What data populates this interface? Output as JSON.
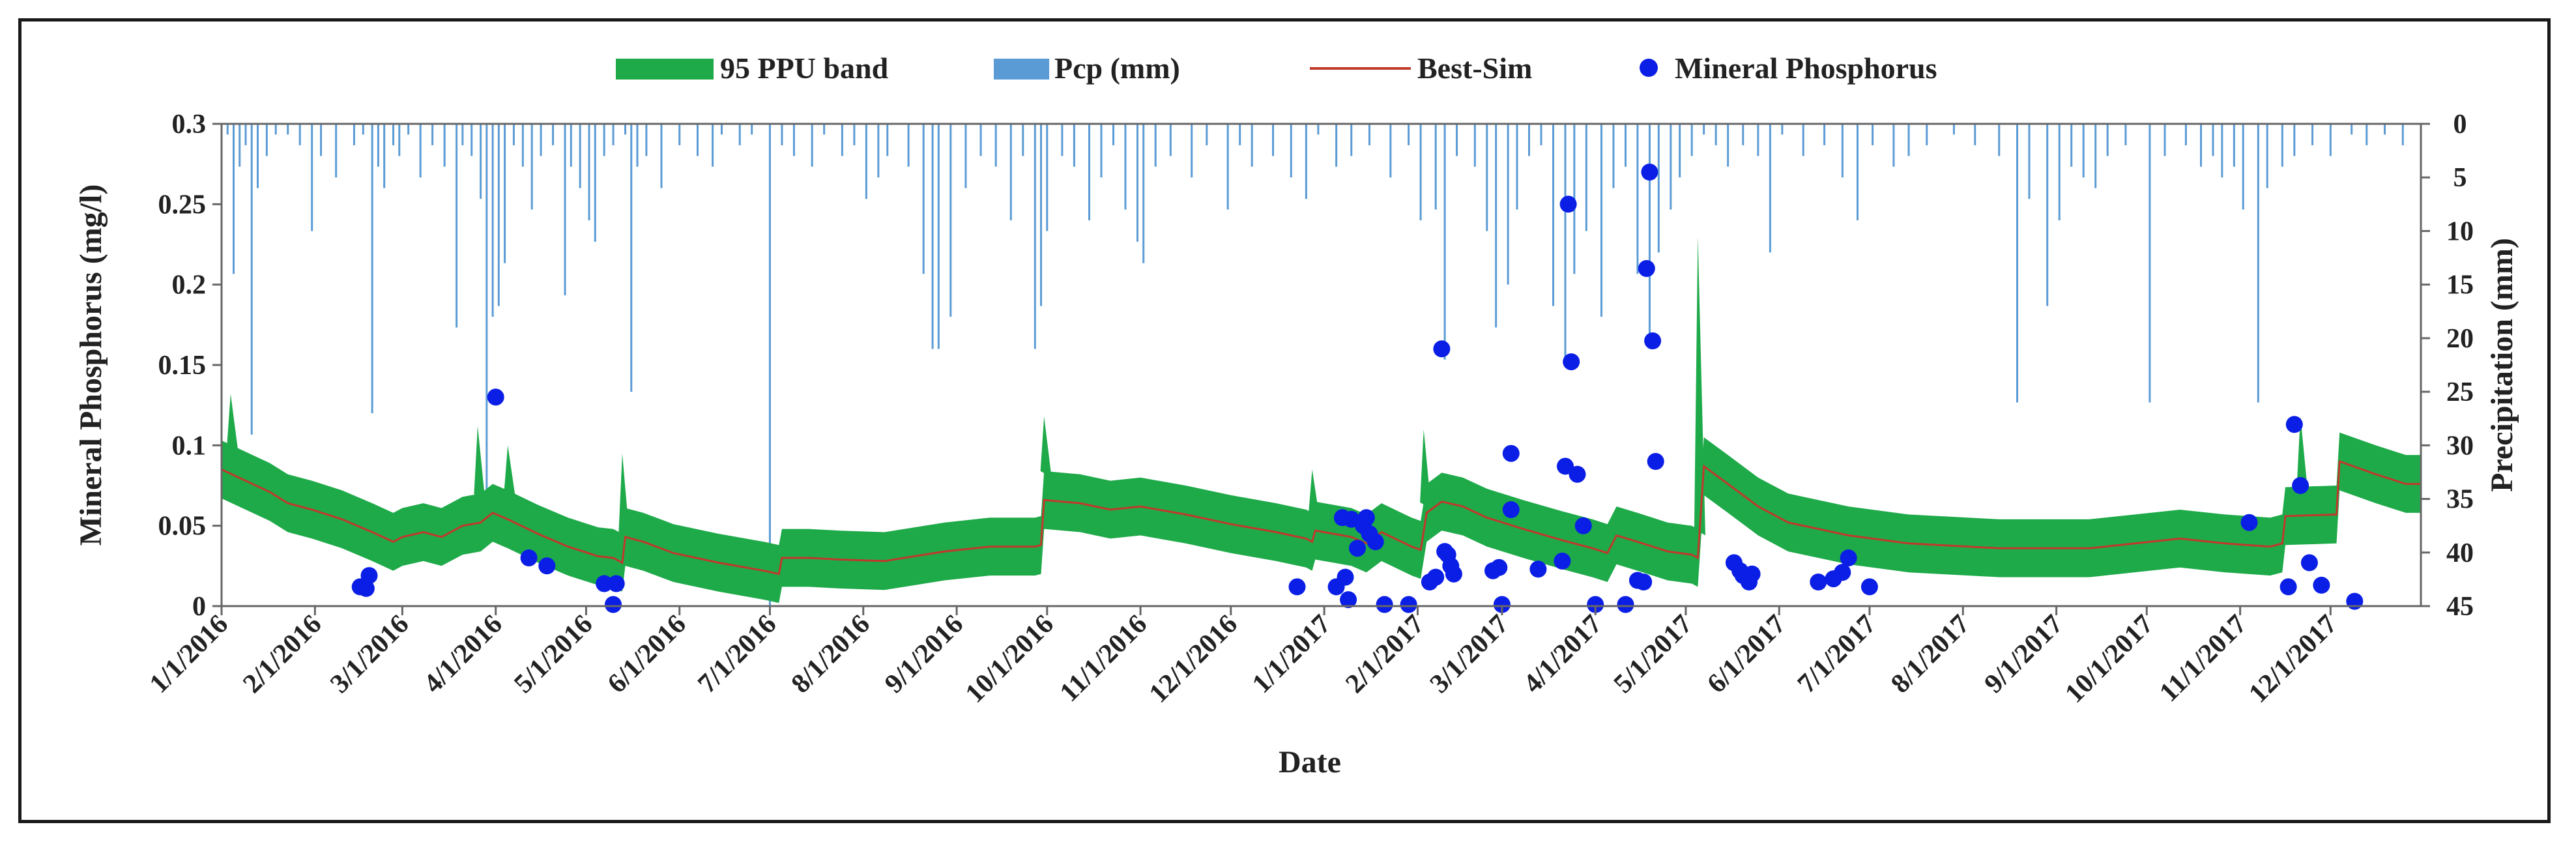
{
  "chart_data": {
    "type": "line",
    "title": "",
    "xlabel": "Date",
    "ylabel": "Mineral Phosphorus (mg/l)",
    "y2label": "Precipitation (mm)",
    "ylim": [
      0,
      0.3
    ],
    "y2lim": [
      0,
      45
    ],
    "y2_inverted": true,
    "xlim_days": [
      0,
      730
    ],
    "y_ticks": [
      "0",
      "0.05",
      "0.1",
      "0.15",
      "0.2",
      "0.25",
      "0.3"
    ],
    "y2_ticks": [
      "0",
      "5",
      "10",
      "15",
      "20",
      "25",
      "30",
      "35",
      "40",
      "45"
    ],
    "x_ticks": [
      {
        "label": "1/1/2016",
        "day": 0
      },
      {
        "label": "2/1/2016",
        "day": 31
      },
      {
        "label": "3/1/2016",
        "day": 60
      },
      {
        "label": "4/1/2016",
        "day": 91
      },
      {
        "label": "5/1/2016",
        "day": 121
      },
      {
        "label": "6/1/2016",
        "day": 152
      },
      {
        "label": "7/1/2016",
        "day": 182
      },
      {
        "label": "8/1/2016",
        "day": 213
      },
      {
        "label": "9/1/2016",
        "day": 244
      },
      {
        "label": "10/1/2016",
        "day": 274
      },
      {
        "label": "11/1/2016",
        "day": 305
      },
      {
        "label": "12/1/2016",
        "day": 335
      },
      {
        "label": "1/1/2017",
        "day": 366
      },
      {
        "label": "2/1/2017",
        "day": 397
      },
      {
        "label": "3/1/2017",
        "day": 425
      },
      {
        "label": "4/1/2017",
        "day": 456
      },
      {
        "label": "5/1/2017",
        "day": 486
      },
      {
        "label": "6/1/2017",
        "day": 517
      },
      {
        "label": "7/1/2017",
        "day": 547
      },
      {
        "label": "8/1/2017",
        "day": 578
      },
      {
        "label": "9/1/2017",
        "day": 609
      },
      {
        "label": "10/1/2017",
        "day": 639
      },
      {
        "label": "11/1/2017",
        "day": 670
      },
      {
        "label": "12/1/2017",
        "day": 700
      }
    ],
    "legend": {
      "position": "top-center",
      "entries": [
        {
          "label": "95 PPU band",
          "color": "#1faa4a",
          "kind": "band"
        },
        {
          "label": "Pcp (mm)",
          "color": "#5b9bd5",
          "kind": "bar"
        },
        {
          "label": "Best-Sim",
          "color": "#c0392b",
          "kind": "line"
        },
        {
          "label": "Mineral Phosphorus",
          "color": "#0a1ee6",
          "kind": "point"
        }
      ]
    },
    "best_sim": {
      "name": "Best-Sim",
      "color": "#c0392b",
      "points": [
        [
          0,
          0.085
        ],
        [
          8,
          0.078
        ],
        [
          16,
          0.071
        ],
        [
          22,
          0.064
        ],
        [
          30,
          0.06
        ],
        [
          40,
          0.054
        ],
        [
          50,
          0.046
        ],
        [
          57,
          0.04
        ],
        [
          60,
          0.043
        ],
        [
          67,
          0.046
        ],
        [
          73,
          0.043
        ],
        [
          80,
          0.05
        ],
        [
          86,
          0.052
        ],
        [
          90,
          0.058
        ],
        [
          95,
          0.054
        ],
        [
          105,
          0.045
        ],
        [
          115,
          0.037
        ],
        [
          125,
          0.031
        ],
        [
          130,
          0.03
        ],
        [
          133,
          0.027
        ],
        [
          134,
          0.043
        ],
        [
          140,
          0.04
        ],
        [
          150,
          0.033
        ],
        [
          165,
          0.027
        ],
        [
          180,
          0.022
        ],
        [
          185,
          0.02
        ],
        [
          186,
          0.03
        ],
        [
          195,
          0.03
        ],
        [
          205,
          0.029
        ],
        [
          220,
          0.028
        ],
        [
          230,
          0.031
        ],
        [
          240,
          0.034
        ],
        [
          255,
          0.037
        ],
        [
          270,
          0.037
        ],
        [
          272,
          0.038
        ],
        [
          273,
          0.066
        ],
        [
          285,
          0.064
        ],
        [
          295,
          0.06
        ],
        [
          305,
          0.062
        ],
        [
          320,
          0.057
        ],
        [
          335,
          0.051
        ],
        [
          350,
          0.046
        ],
        [
          360,
          0.042
        ],
        [
          362,
          0.04
        ],
        [
          363,
          0.047
        ],
        [
          375,
          0.043
        ],
        [
          380,
          0.039
        ],
        [
          385,
          0.046
        ],
        [
          395,
          0.037
        ],
        [
          398,
          0.035
        ],
        [
          400,
          0.058
        ],
        [
          405,
          0.065
        ],
        [
          412,
          0.062
        ],
        [
          420,
          0.055
        ],
        [
          432,
          0.048
        ],
        [
          445,
          0.041
        ],
        [
          455,
          0.036
        ],
        [
          460,
          0.033
        ],
        [
          463,
          0.044
        ],
        [
          470,
          0.04
        ],
        [
          480,
          0.034
        ],
        [
          488,
          0.032
        ],
        [
          490,
          0.03
        ],
        [
          492,
          0.087
        ],
        [
          500,
          0.076
        ],
        [
          510,
          0.062
        ],
        [
          520,
          0.052
        ],
        [
          540,
          0.044
        ],
        [
          560,
          0.039
        ],
        [
          590,
          0.036
        ],
        [
          620,
          0.036
        ],
        [
          650,
          0.042
        ],
        [
          665,
          0.039
        ],
        [
          680,
          0.037
        ],
        [
          684,
          0.039
        ],
        [
          685,
          0.056
        ],
        [
          702,
          0.057
        ],
        [
          703,
          0.09
        ],
        [
          715,
          0.082
        ],
        [
          725,
          0.076
        ],
        [
          730,
          0.076
        ]
      ]
    },
    "ppu_band": {
      "name": "95 PPU band",
      "color": "#1faa4a",
      "half_width": 0.018,
      "spikes": [
        [
          3,
          0.132
        ],
        [
          85,
          0.112
        ],
        [
          95,
          0.1
        ],
        [
          133,
          0.095
        ],
        [
          273,
          0.118
        ],
        [
          362,
          0.085
        ],
        [
          399,
          0.11
        ],
        [
          490,
          0.23
        ],
        [
          690,
          0.118
        ]
      ]
    },
    "observed": {
      "name": "Mineral Phosphorus",
      "color": "#0a1ee6",
      "points": [
        [
          46,
          0.012
        ],
        [
          48,
          0.011
        ],
        [
          49,
          0.019
        ],
        [
          91,
          0.13
        ],
        [
          102,
          0.03
        ],
        [
          108,
          0.025
        ],
        [
          127,
          0.014
        ],
        [
          130,
          0.001
        ],
        [
          131,
          0.014
        ],
        [
          357,
          0.012
        ],
        [
          370,
          0.012
        ],
        [
          372,
          0.055
        ],
        [
          373,
          0.018
        ],
        [
          374,
          0.004
        ],
        [
          375,
          0.054
        ],
        [
          377,
          0.036
        ],
        [
          379,
          0.05
        ],
        [
          380,
          0.055
        ],
        [
          381,
          0.045
        ],
        [
          383,
          0.04
        ],
        [
          386,
          0.001
        ],
        [
          394,
          0.001
        ],
        [
          401,
          0.015
        ],
        [
          403,
          0.018
        ],
        [
          405,
          0.16
        ],
        [
          406,
          0.034
        ],
        [
          407,
          0.032
        ],
        [
          408,
          0.025
        ],
        [
          409,
          0.02
        ],
        [
          422,
          0.022
        ],
        [
          424,
          0.024
        ],
        [
          425,
          0.001
        ],
        [
          428,
          0.095
        ],
        [
          428,
          0.06
        ],
        [
          437,
          0.023
        ],
        [
          445,
          0.028
        ],
        [
          446,
          0.087
        ],
        [
          447,
          0.25
        ],
        [
          448,
          0.152
        ],
        [
          450,
          0.082
        ],
        [
          452,
          0.05
        ],
        [
          456,
          0.001
        ],
        [
          466,
          0.001
        ],
        [
          470,
          0.016
        ],
        [
          472,
          0.015
        ],
        [
          473,
          0.21
        ],
        [
          474,
          0.27
        ],
        [
          475,
          0.165
        ],
        [
          476,
          0.09
        ],
        [
          502,
          0.027
        ],
        [
          504,
          0.022
        ],
        [
          505,
          0.019
        ],
        [
          507,
          0.015
        ],
        [
          508,
          0.02
        ],
        [
          530,
          0.015
        ],
        [
          535,
          0.017
        ],
        [
          538,
          0.021
        ],
        [
          540,
          0.03
        ],
        [
          547,
          0.012
        ],
        [
          673,
          0.052
        ],
        [
          686,
          0.012
        ],
        [
          688,
          0.113
        ],
        [
          690,
          0.075
        ],
        [
          693,
          0.027
        ],
        [
          697,
          0.013
        ],
        [
          708,
          0.003
        ]
      ]
    },
    "precipitation": {
      "name": "Pcp (mm)",
      "color": "#5b9bd5",
      "points": [
        [
          2,
          1
        ],
        [
          4,
          14
        ],
        [
          6,
          4
        ],
        [
          8,
          2
        ],
        [
          10,
          29
        ],
        [
          12,
          6
        ],
        [
          15,
          3
        ],
        [
          18,
          1
        ],
        [
          22,
          1
        ],
        [
          26,
          2
        ],
        [
          30,
          10
        ],
        [
          33,
          3
        ],
        [
          38,
          5
        ],
        [
          44,
          2
        ],
        [
          47,
          1
        ],
        [
          50,
          27
        ],
        [
          52,
          4
        ],
        [
          54,
          6
        ],
        [
          57,
          2
        ],
        [
          59,
          3
        ],
        [
          62,
          1
        ],
        [
          66,
          5
        ],
        [
          70,
          2
        ],
        [
          74,
          4
        ],
        [
          78,
          19
        ],
        [
          80,
          2
        ],
        [
          83,
          3
        ],
        [
          86,
          7
        ],
        [
          88,
          35
        ],
        [
          90,
          18
        ],
        [
          92,
          17
        ],
        [
          94,
          13
        ],
        [
          97,
          2
        ],
        [
          100,
          4
        ],
        [
          103,
          8
        ],
        [
          106,
          3
        ],
        [
          110,
          2
        ],
        [
          114,
          16
        ],
        [
          116,
          4
        ],
        [
          119,
          6
        ],
        [
          122,
          9
        ],
        [
          124,
          11
        ],
        [
          127,
          3
        ],
        [
          130,
          2
        ],
        [
          134,
          1
        ],
        [
          136,
          25
        ],
        [
          138,
          4
        ],
        [
          141,
          3
        ],
        [
          146,
          6
        ],
        [
          152,
          2
        ],
        [
          158,
          3
        ],
        [
          163,
          4
        ],
        [
          166,
          1
        ],
        [
          172,
          2
        ],
        [
          176,
          1
        ],
        [
          182,
          45
        ],
        [
          186,
          2
        ],
        [
          190,
          3
        ],
        [
          196,
          4
        ],
        [
          200,
          1
        ],
        [
          206,
          3
        ],
        [
          210,
          2
        ],
        [
          214,
          7
        ],
        [
          218,
          5
        ],
        [
          221,
          3
        ],
        [
          228,
          4
        ],
        [
          233,
          14
        ],
        [
          236,
          21
        ],
        [
          238,
          21
        ],
        [
          242,
          18
        ],
        [
          247,
          6
        ],
        [
          252,
          3
        ],
        [
          257,
          4
        ],
        [
          262,
          9
        ],
        [
          266,
          3
        ],
        [
          270,
          21
        ],
        [
          272,
          17
        ],
        [
          274,
          10
        ],
        [
          279,
          3
        ],
        [
          283,
          4
        ],
        [
          288,
          9
        ],
        [
          292,
          5
        ],
        [
          296,
          2
        ],
        [
          300,
          8
        ],
        [
          304,
          11
        ],
        [
          306,
          13
        ],
        [
          310,
          4
        ],
        [
          315,
          3
        ],
        [
          322,
          5
        ],
        [
          327,
          2
        ],
        [
          334,
          8
        ],
        [
          338,
          2
        ],
        [
          342,
          4
        ],
        [
          349,
          3
        ],
        [
          355,
          5
        ],
        [
          360,
          7
        ],
        [
          364,
          1
        ],
        [
          370,
          4
        ],
        [
          375,
          3
        ],
        [
          381,
          2
        ],
        [
          388,
          5
        ],
        [
          394,
          2
        ],
        [
          398,
          9
        ],
        [
          403,
          8
        ],
        [
          406,
          22
        ],
        [
          410,
          3
        ],
        [
          416,
          4
        ],
        [
          420,
          10
        ],
        [
          423,
          19
        ],
        [
          427,
          15
        ],
        [
          430,
          8
        ],
        [
          434,
          3
        ],
        [
          438,
          2
        ],
        [
          442,
          17
        ],
        [
          446,
          22
        ],
        [
          449,
          14
        ],
        [
          453,
          10
        ],
        [
          458,
          18
        ],
        [
          462,
          6
        ],
        [
          466,
          4
        ],
        [
          470,
          14
        ],
        [
          474,
          21
        ],
        [
          477,
          12
        ],
        [
          481,
          8
        ],
        [
          484,
          5
        ],
        [
          488,
          3
        ],
        [
          492,
          1
        ],
        [
          496,
          2
        ],
        [
          500,
          4
        ],
        [
          505,
          2
        ],
        [
          510,
          3
        ],
        [
          514,
          12
        ],
        [
          518,
          1
        ],
        [
          525,
          3
        ],
        [
          532,
          2
        ],
        [
          538,
          5
        ],
        [
          543,
          9
        ],
        [
          548,
          2
        ],
        [
          555,
          4
        ],
        [
          560,
          3
        ],
        [
          566,
          2
        ],
        [
          575,
          1
        ],
        [
          582,
          2
        ],
        [
          590,
          3
        ],
        [
          596,
          26
        ],
        [
          600,
          7
        ],
        [
          606,
          17
        ],
        [
          610,
          9
        ],
        [
          614,
          4
        ],
        [
          618,
          5
        ],
        [
          622,
          6
        ],
        [
          626,
          3
        ],
        [
          632,
          2
        ],
        [
          640,
          26
        ],
        [
          645,
          3
        ],
        [
          652,
          2
        ],
        [
          657,
          4
        ],
        [
          661,
          3
        ],
        [
          664,
          5
        ],
        [
          668,
          4
        ],
        [
          671,
          8
        ],
        [
          676,
          26
        ],
        [
          679,
          6
        ],
        [
          684,
          4
        ],
        [
          688,
          3
        ],
        [
          694,
          2
        ],
        [
          700,
          3
        ],
        [
          707,
          1
        ],
        [
          712,
          2
        ],
        [
          718,
          1
        ],
        [
          724,
          2
        ]
      ]
    }
  }
}
